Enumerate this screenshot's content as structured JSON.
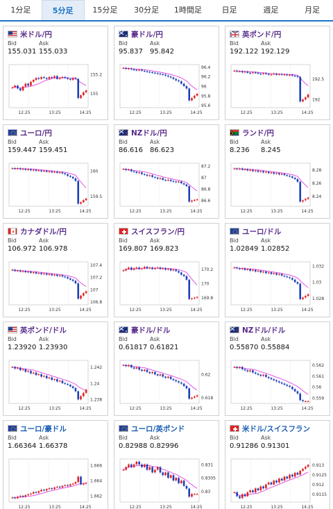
{
  "tabs": [
    {
      "label": "1分足",
      "active": false
    },
    {
      "label": "5分足",
      "active": true
    },
    {
      "label": "15分足",
      "active": false
    },
    {
      "label": "30分足",
      "active": false
    },
    {
      "label": "1時間足",
      "active": false
    },
    {
      "label": "日足",
      "active": false
    },
    {
      "label": "週足",
      "active": false
    },
    {
      "label": "月足",
      "active": false
    }
  ],
  "labels": {
    "bid": "Bid",
    "ask": "Ask"
  },
  "colors": {
    "tab_accent": "#1a73c8",
    "pair_text": "#5a2d8c",
    "pair_text_cross": "#1a5fb4",
    "candle_up": "#e02020",
    "candle_down": "#1c3fb8",
    "ma_line": "#e040e0",
    "ma_line_2": "#21a6c9"
  },
  "cards": [
    {
      "name": "usd-jpy",
      "pair": "米ドル/円",
      "flag": "us-flag",
      "bid": "155.031",
      "ask": "155.033",
      "chart_data": {
        "type": "candlestick",
        "xticks": [
          "12:25",
          "13:25",
          "14:25"
        ],
        "yticks": [
          "155.2",
          "155"
        ],
        "ylim": [
          154.85,
          155.3
        ],
        "closes": [
          155.06,
          155.08,
          155.05,
          155.03,
          155.07,
          155.1,
          155.08,
          155.12,
          155.14,
          155.16,
          155.15,
          155.17,
          155.16,
          155.15,
          155.17,
          155.16,
          155.18,
          155.15,
          155.16,
          155.17,
          155.16,
          155.15,
          155.14,
          155.16,
          155.15,
          154.95,
          154.98,
          155.01,
          155.03
        ]
      }
    },
    {
      "name": "aud-jpy",
      "pair": "豪ドル/円",
      "flag": "au-flag",
      "bid": "95.837",
      "ask": "95.842",
      "chart_data": {
        "type": "candlestick",
        "xticks": [
          "12:25",
          "13:25",
          "14:25"
        ],
        "yticks": [
          "96.4",
          "96.2",
          "96",
          "95.8",
          "95.6"
        ],
        "ylim": [
          95.55,
          96.45
        ],
        "closes": [
          96.38,
          96.36,
          96.37,
          96.35,
          96.34,
          96.33,
          96.34,
          96.32,
          96.31,
          96.3,
          96.29,
          96.28,
          96.27,
          96.26,
          96.25,
          96.24,
          96.22,
          96.2,
          96.18,
          96.15,
          96.12,
          96.1,
          96.05,
          96.0,
          95.95,
          95.7,
          95.75,
          95.8,
          95.84
        ]
      }
    },
    {
      "name": "gbp-jpy",
      "pair": "英ポンド/円",
      "flag": "gb-flag",
      "bid": "192.122",
      "ask": "192.129",
      "chart_data": {
        "type": "candlestick",
        "xticks": [
          "12:25",
          "13:25",
          "14:25"
        ],
        "yticks": [
          "192.5",
          "192"
        ],
        "ylim": [
          191.8,
          192.85
        ],
        "closes": [
          192.7,
          192.68,
          192.69,
          192.66,
          192.68,
          192.65,
          192.64,
          192.66,
          192.65,
          192.63,
          192.62,
          192.64,
          192.62,
          192.6,
          192.61,
          192.63,
          192.6,
          192.62,
          192.6,
          192.61,
          192.59,
          192.6,
          192.58,
          192.57,
          192.55,
          191.95,
          192.0,
          192.05,
          192.12
        ]
      }
    },
    {
      "name": "eur-jpy",
      "pair": "ユーロ/円",
      "flag": "eu-flag",
      "bid": "159.447",
      "ask": "159.451",
      "chart_data": {
        "type": "candlestick",
        "xticks": [
          "12:25",
          "13:25",
          "14:25"
        ],
        "yticks": [
          "160",
          "159.5"
        ],
        "ylim": [
          159.3,
          160.15
        ],
        "closes": [
          160.05,
          160.04,
          160.05,
          160.03,
          160.04,
          160.02,
          160.03,
          160.01,
          160.02,
          160.0,
          160.01,
          159.99,
          160.0,
          159.98,
          159.99,
          159.97,
          159.98,
          159.96,
          159.97,
          159.95,
          159.93,
          159.9,
          159.88,
          159.85,
          159.8,
          159.35,
          159.38,
          159.42,
          159.45
        ]
      }
    },
    {
      "name": "nzd-jpy",
      "pair": "NZドル/円",
      "flag": "nz-flag",
      "bid": "86.616",
      "ask": "86.623",
      "chart_data": {
        "type": "candlestick",
        "xticks": [
          "12:25",
          "13:25",
          "14:25"
        ],
        "yticks": [
          "87.2",
          "87",
          "86.8",
          "86.6"
        ],
        "ylim": [
          86.5,
          87.25
        ],
        "closes": [
          87.15,
          87.13,
          87.14,
          87.11,
          87.1,
          87.08,
          87.09,
          87.06,
          87.05,
          87.03,
          87.04,
          87.01,
          87.0,
          86.98,
          86.99,
          86.96,
          86.95,
          86.96,
          86.94,
          86.93,
          86.92,
          86.93,
          86.9,
          86.88,
          86.85,
          86.58,
          86.6,
          86.61,
          86.62
        ]
      }
    },
    {
      "name": "zar-jpy",
      "pair": "ランド/円",
      "flag": "za-flag",
      "bid": "8.236",
      "ask": "8.245",
      "chart_data": {
        "type": "candlestick",
        "xticks": [
          "12:25",
          "13:25",
          "14:25"
        ],
        "yticks": [
          "8.28",
          "8.26",
          "8.24"
        ],
        "ylim": [
          8.225,
          8.29
        ],
        "closes": [
          8.282,
          8.281,
          8.282,
          8.28,
          8.281,
          8.279,
          8.28,
          8.278,
          8.279,
          8.277,
          8.278,
          8.276,
          8.277,
          8.275,
          8.276,
          8.274,
          8.275,
          8.273,
          8.274,
          8.272,
          8.271,
          8.27,
          8.268,
          8.266,
          8.262,
          8.232,
          8.234,
          8.236,
          8.238
        ]
      }
    },
    {
      "name": "cad-jpy",
      "pair": "カナダドル/円",
      "flag": "ca-flag",
      "bid": "106.972",
      "ask": "106.978",
      "chart_data": {
        "type": "candlestick",
        "xticks": [
          "12:25",
          "13:25",
          "14:25"
        ],
        "yticks": [
          "107.4",
          "107.2",
          "107",
          "106.8"
        ],
        "ylim": [
          106.75,
          107.45
        ],
        "closes": [
          107.32,
          107.3,
          107.31,
          107.29,
          107.3,
          107.28,
          107.29,
          107.27,
          107.28,
          107.26,
          107.27,
          107.25,
          107.26,
          107.24,
          107.25,
          107.23,
          107.24,
          107.22,
          107.23,
          107.21,
          107.2,
          107.18,
          107.16,
          107.14,
          107.1,
          106.85,
          106.9,
          106.94,
          106.97
        ]
      }
    },
    {
      "name": "chf-jpy",
      "pair": "スイスフラン/円",
      "flag": "ch-flag",
      "bid": "169.807",
      "ask": "169.823",
      "chart_data": {
        "type": "candlestick",
        "xticks": [
          "12:25",
          "13:25",
          "14:25"
        ],
        "yticks": [
          "170.2",
          "170",
          "169.8"
        ],
        "ylim": [
          169.7,
          170.3
        ],
        "closes": [
          170.18,
          170.2,
          170.22,
          170.19,
          170.21,
          170.22,
          170.2,
          170.21,
          170.23,
          170.21,
          170.22,
          170.2,
          170.21,
          170.22,
          170.2,
          170.21,
          170.19,
          170.2,
          170.18,
          170.19,
          170.17,
          170.15,
          170.12,
          170.1,
          170.05,
          169.78,
          169.79,
          169.8,
          169.81
        ]
      }
    },
    {
      "name": "eur-usd",
      "pair": "ユーロ/ドル",
      "flag": "eu-us-flag",
      "bid": "1.02849",
      "ask": "1.02852",
      "chart_data": {
        "type": "candlestick",
        "xticks": [
          "12:25",
          "13:25",
          "14:25"
        ],
        "yticks": [
          "1.032",
          "1.03",
          "1.028"
        ],
        "ylim": [
          1.0272,
          1.0325
        ],
        "closes": [
          1.0318,
          1.0317,
          1.0316,
          1.0317,
          1.0315,
          1.0316,
          1.0314,
          1.0315,
          1.0313,
          1.0314,
          1.0312,
          1.0313,
          1.0311,
          1.0312,
          1.031,
          1.0311,
          1.0309,
          1.031,
          1.0308,
          1.0307,
          1.0306,
          1.0305,
          1.0303,
          1.03,
          1.0298,
          1.0279,
          1.0281,
          1.0283,
          1.0285
        ]
      }
    },
    {
      "name": "gbp-usd",
      "pair": "英ポンド/ドル",
      "flag": "gb-us-flag",
      "bid": "1.23920",
      "ask": "1.23930",
      "chart_data": {
        "type": "candlestick",
        "xticks": [
          "12:25",
          "13:25",
          "14:25"
        ],
        "yticks": [
          "1.242",
          "1.24",
          "1.238"
        ],
        "ylim": [
          1.2375,
          1.2428
        ],
        "closes": [
          1.242,
          1.2418,
          1.2419,
          1.2416,
          1.2417,
          1.2414,
          1.2415,
          1.2412,
          1.2413,
          1.241,
          1.2411,
          1.2408,
          1.2409,
          1.2406,
          1.2407,
          1.2404,
          1.2405,
          1.2402,
          1.2403,
          1.24,
          1.2399,
          1.2398,
          1.2396,
          1.2394,
          1.239,
          1.238,
          1.2384,
          1.2388,
          1.2392
        ]
      }
    },
    {
      "name": "aud-usd",
      "pair": "豪ドル/ドル",
      "flag": "au-us-flag",
      "bid": "0.61817",
      "ask": "0.61821",
      "chart_data": {
        "type": "candlestick",
        "xticks": [
          "12:25",
          "13:25",
          "14:25"
        ],
        "yticks": [
          "0.62",
          "0.618"
        ],
        "ylim": [
          0.6175,
          0.6212
        ],
        "closes": [
          0.6208,
          0.6207,
          0.6208,
          0.6206,
          0.6205,
          0.6206,
          0.6204,
          0.6203,
          0.6204,
          0.6202,
          0.6201,
          0.6202,
          0.62,
          0.6199,
          0.62,
          0.6198,
          0.6197,
          0.6198,
          0.6196,
          0.6195,
          0.6194,
          0.6193,
          0.6192,
          0.619,
          0.6188,
          0.6179,
          0.618,
          0.6181,
          0.6182
        ]
      }
    },
    {
      "name": "nzd-usd",
      "pair": "NZドル/ドル",
      "flag": "nz-us-flag",
      "bid": "0.55870",
      "ask": "0.55884",
      "chart_data": {
        "type": "candlestick",
        "xticks": [
          "12:25",
          "13:25",
          "14:25"
        ],
        "yticks": [
          "0.562",
          "0.561",
          "0.56",
          "0.559"
        ],
        "ylim": [
          0.5585,
          0.5624
        ],
        "closes": [
          0.5618,
          0.5617,
          0.5618,
          0.5616,
          0.5615,
          0.5614,
          0.5615,
          0.5613,
          0.5612,
          0.5611,
          0.561,
          0.5611,
          0.5609,
          0.5608,
          0.5607,
          0.5606,
          0.5605,
          0.5604,
          0.5603,
          0.5602,
          0.5601,
          0.56,
          0.5598,
          0.5596,
          0.5594,
          0.5588,
          0.5587,
          0.5587,
          0.5587
        ]
      }
    },
    {
      "name": "eur-aud",
      "pair": "ユーロ/豪ドル",
      "flag": "eu-au-flag",
      "bid": "1.66364",
      "ask": "1.66378",
      "blue": true,
      "chart_data": {
        "type": "candlestick",
        "xticks": [
          "12:25",
          "13:25",
          "14:25"
        ],
        "yticks": [
          "1.666",
          "1.664",
          "1.662"
        ],
        "ylim": [
          1.6612,
          1.6668
        ],
        "closes": [
          1.6618,
          1.6617,
          1.6619,
          1.662,
          1.6619,
          1.6621,
          1.6622,
          1.6623,
          1.6625,
          1.6624,
          1.6626,
          1.6628,
          1.6627,
          1.6629,
          1.663,
          1.6629,
          1.6631,
          1.6632,
          1.6631,
          1.6633,
          1.6634,
          1.6633,
          1.6635,
          1.6636,
          1.6638,
          1.6645,
          1.6635,
          1.6636,
          1.6637
        ]
      }
    },
    {
      "name": "eur-gbp",
      "pair": "ユーロ/英ポンド",
      "flag": "eu-gb-flag",
      "bid": "0.82988",
      "ask": "0.82996",
      "blue": true,
      "chart_data": {
        "type": "candlestick",
        "xticks": [
          "12:25",
          "13:25",
          "14:25"
        ],
        "yticks": [
          "0.831",
          "0.8305",
          "0.83"
        ],
        "ylim": [
          0.8296,
          0.8312
        ],
        "closes": [
          0.8308,
          0.8309,
          0.831,
          0.8309,
          0.831,
          0.8311,
          0.831,
          0.8309,
          0.831,
          0.8308,
          0.8309,
          0.8307,
          0.8308,
          0.8309,
          0.8307,
          0.8306,
          0.8307,
          0.8305,
          0.8306,
          0.8304,
          0.8305,
          0.8303,
          0.8304,
          0.8302,
          0.8301,
          0.8298,
          0.8299,
          0.8299,
          0.8299
        ]
      }
    },
    {
      "name": "usd-chf",
      "pair": "米ドル/スイスフラン",
      "flag": "us-ch-flag",
      "bid": "0.91286",
      "ask": "0.91301",
      "blue": true,
      "chart_data": {
        "type": "candlestick",
        "xticks": [
          "12:25",
          "13:25",
          "14:25"
        ],
        "yticks": [
          "0.913",
          "0.9125",
          "0.912",
          "0.9115"
        ],
        "ylim": [
          0.9111,
          0.9133
        ],
        "closes": [
          0.9116,
          0.9114,
          0.9113,
          0.9115,
          0.9114,
          0.9116,
          0.9117,
          0.9116,
          0.9118,
          0.9117,
          0.9119,
          0.9118,
          0.912,
          0.9121,
          0.912,
          0.9122,
          0.9121,
          0.9123,
          0.9122,
          0.9124,
          0.9123,
          0.9125,
          0.9124,
          0.9126,
          0.9125,
          0.9127,
          0.9128,
          0.9129,
          0.913
        ]
      }
    }
  ]
}
